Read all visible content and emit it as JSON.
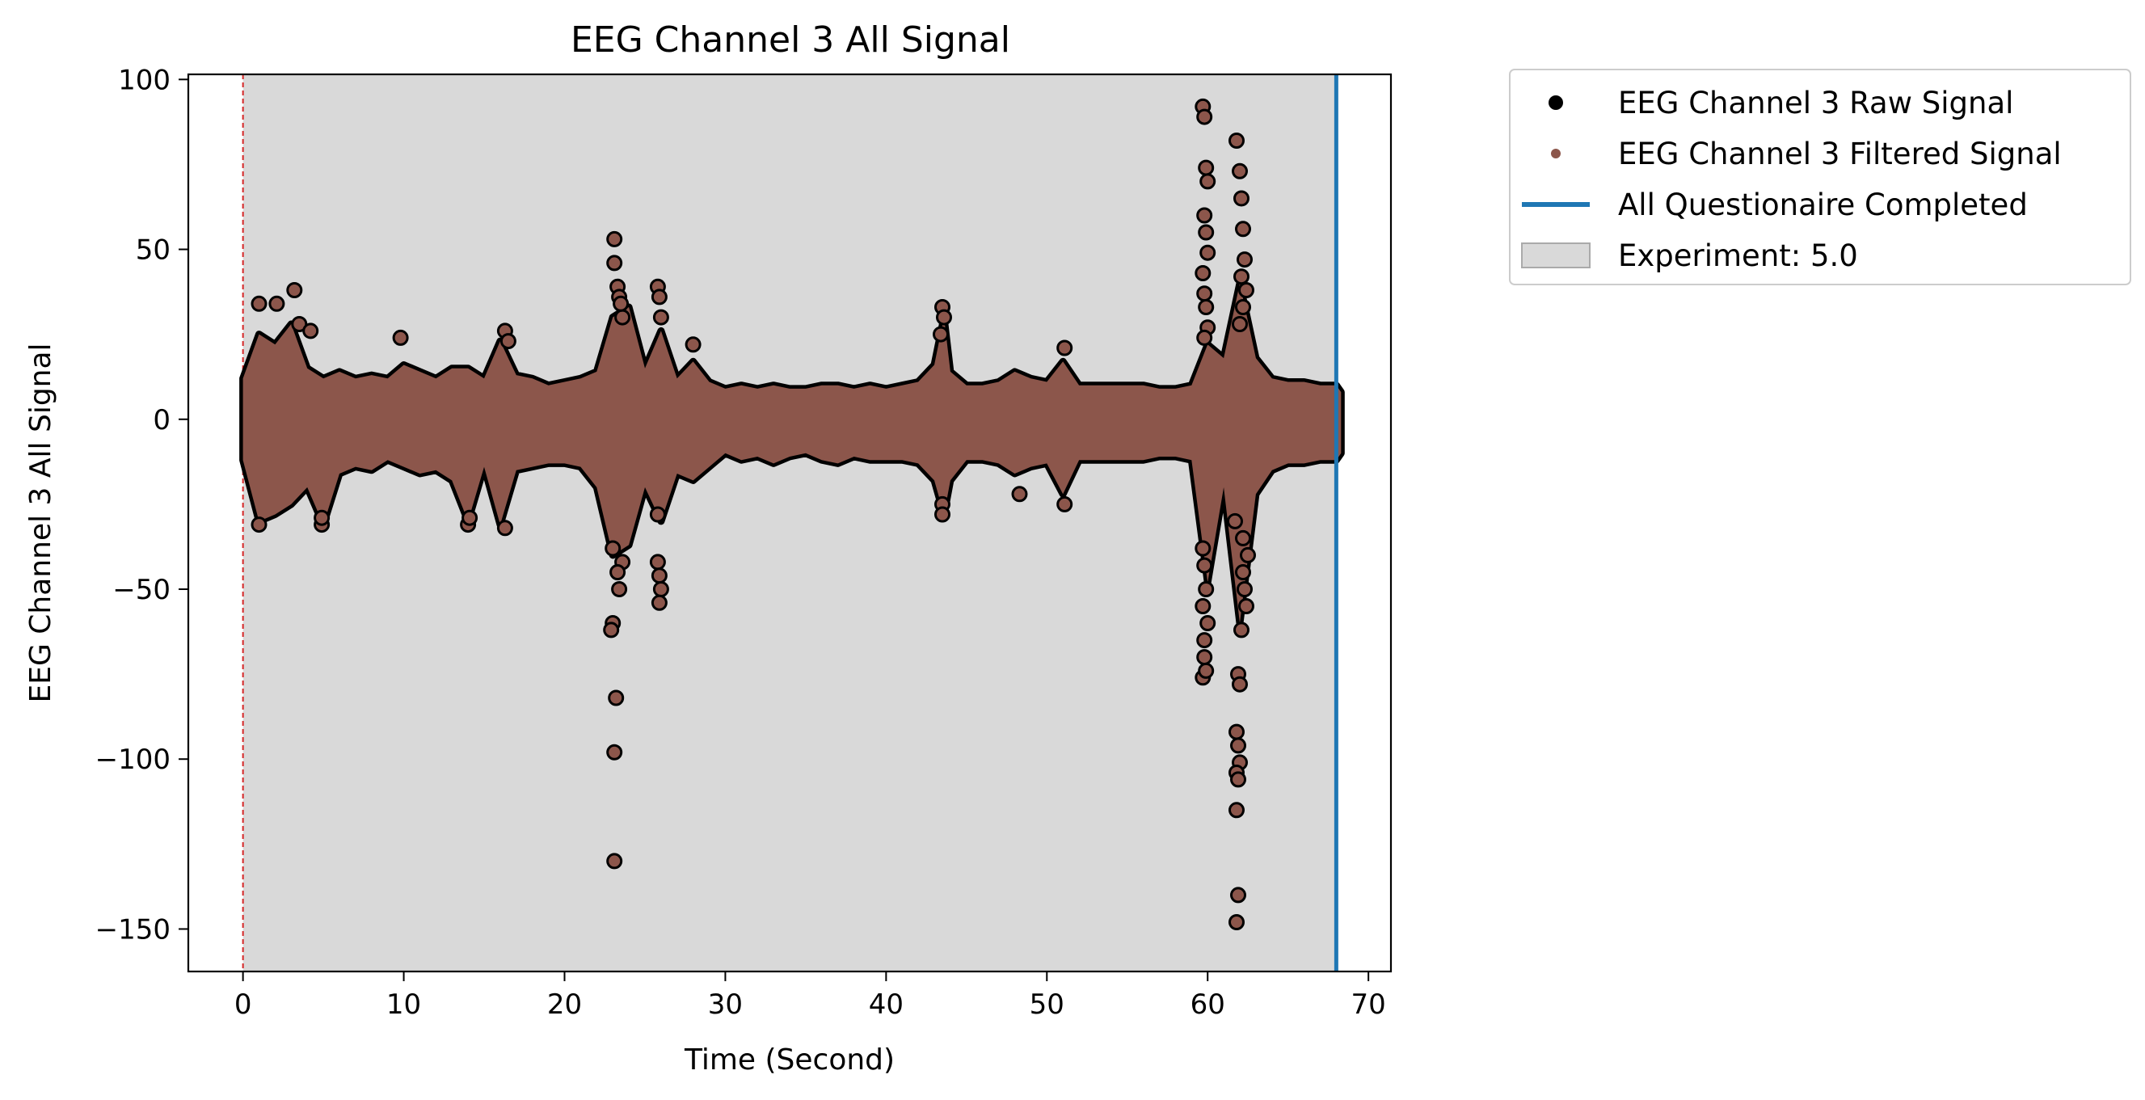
{
  "chart_data": {
    "type": "scatter",
    "title": "EEG Channel 3 All Signal",
    "xlabel": "Time (Second)",
    "ylabel": "EEG Channel 3 All Signal",
    "xlim": [
      -3.4,
      71.4
    ],
    "ylim": [
      -162.5,
      101.5
    ],
    "xticks": [
      0,
      10,
      20,
      30,
      40,
      50,
      60,
      70
    ],
    "yticks": [
      100,
      50,
      0,
      -50,
      -100,
      -150
    ],
    "grid": false,
    "legend_position": "outside-right",
    "colors": {
      "raw": "#000000",
      "filtered": "#8c564b",
      "questionnaire_line": "#1f77b4",
      "experiment_span": "#d9d9d9",
      "start_line": "#d62728"
    },
    "series": [
      {
        "name": "EEG Channel 3 Raw Signal",
        "marker": "dot",
        "color": "#000000"
      },
      {
        "name": "EEG Channel 3 Filtered Signal",
        "marker": "dot",
        "color": "#8c564b"
      }
    ],
    "annotations": {
      "start_line_x": 0,
      "questionnaire_line_x": 68.0,
      "experiment_span": [
        0,
        68.0
      ]
    },
    "legend": [
      {
        "label": "EEG Channel 3 Raw Signal",
        "kind": "dot",
        "color": "#000000"
      },
      {
        "label": "EEG Channel 3 Filtered Signal",
        "kind": "dot",
        "color": "#8c564b"
      },
      {
        "label": "All Questionaire Completed",
        "kind": "line",
        "color": "#1f77b4"
      },
      {
        "label": "Experiment: 5.0",
        "kind": "patch",
        "color": "#d9d9d9"
      }
    ],
    "envelope": [
      [
        0.0,
        12,
        -12
      ],
      [
        1.0,
        25,
        -30
      ],
      [
        2.0,
        22,
        -28
      ],
      [
        3.0,
        28,
        -25
      ],
      [
        4.0,
        15,
        -20
      ],
      [
        5.0,
        12,
        -31
      ],
      [
        6.0,
        14,
        -16
      ],
      [
        7.0,
        12,
        -14
      ],
      [
        8.0,
        13,
        -15
      ],
      [
        9.0,
        12,
        -12
      ],
      [
        10.0,
        16,
        -14
      ],
      [
        11.0,
        14,
        -16
      ],
      [
        12.0,
        12,
        -15
      ],
      [
        13.0,
        15,
        -18
      ],
      [
        14.0,
        15,
        -30
      ],
      [
        15.0,
        12,
        -14
      ],
      [
        16.0,
        23,
        -31
      ],
      [
        17.0,
        13,
        -15
      ],
      [
        18.0,
        12,
        -14
      ],
      [
        19.0,
        10,
        -13
      ],
      [
        20.0,
        11,
        -13
      ],
      [
        21.0,
        12,
        -14
      ],
      [
        22.0,
        14,
        -20
      ],
      [
        23.0,
        30,
        -40
      ],
      [
        24.0,
        33,
        -37
      ],
      [
        25.0,
        15,
        -20
      ],
      [
        26.0,
        26,
        -30
      ],
      [
        27.0,
        12,
        -16
      ],
      [
        28.0,
        17,
        -18
      ],
      [
        29.0,
        11,
        -14
      ],
      [
        30.0,
        9,
        -10
      ],
      [
        31.0,
        10,
        -12
      ],
      [
        32.0,
        9,
        -11
      ],
      [
        33.0,
        10,
        -13
      ],
      [
        34.0,
        9,
        -11
      ],
      [
        35.0,
        9,
        -10
      ],
      [
        36.0,
        10,
        -12
      ],
      [
        37.0,
        10,
        -13
      ],
      [
        38.0,
        9,
        -11
      ],
      [
        39.0,
        10,
        -12
      ],
      [
        40.0,
        9,
        -12
      ],
      [
        41.0,
        10,
        -12
      ],
      [
        42.0,
        11,
        -13
      ],
      [
        43.0,
        16,
        -18
      ],
      [
        43.6,
        30,
        -28
      ],
      [
        44.0,
        14,
        -18
      ],
      [
        45.0,
        10,
        -12
      ],
      [
        46.0,
        10,
        -12
      ],
      [
        47.0,
        11,
        -13
      ],
      [
        48.0,
        14,
        -16
      ],
      [
        49.0,
        12,
        -14
      ],
      [
        50.0,
        11,
        -13
      ],
      [
        51.0,
        17,
        -22
      ],
      [
        52.0,
        10,
        -12
      ],
      [
        53.0,
        10,
        -12
      ],
      [
        54.0,
        10,
        -12
      ],
      [
        55.0,
        10,
        -12
      ],
      [
        56.0,
        10,
        -12
      ],
      [
        57.0,
        9,
        -11
      ],
      [
        58.0,
        9,
        -11
      ],
      [
        59.0,
        10,
        -12
      ],
      [
        60.0,
        22,
        -48
      ],
      [
        61.0,
        18,
        -20
      ],
      [
        62.0,
        40,
        -60
      ],
      [
        63.0,
        18,
        -22
      ],
      [
        64.0,
        12,
        -15
      ],
      [
        65.0,
        11,
        -13
      ],
      [
        66.0,
        11,
        -13
      ],
      [
        67.0,
        10,
        -12
      ],
      [
        68.0,
        10,
        -12
      ],
      [
        68.3,
        8,
        -10
      ]
    ],
    "outliers": [
      [
        1.0,
        34
      ],
      [
        1.0,
        -31
      ],
      [
        2.1,
        34
      ],
      [
        3.2,
        38
      ],
      [
        3.5,
        28
      ],
      [
        4.2,
        26
      ],
      [
        4.9,
        -31
      ],
      [
        4.9,
        -29
      ],
      [
        9.8,
        24
      ],
      [
        14.0,
        -31
      ],
      [
        14.1,
        -29
      ],
      [
        16.3,
        26
      ],
      [
        16.5,
        23
      ],
      [
        16.3,
        -32
      ],
      [
        23.1,
        53
      ],
      [
        23.1,
        46
      ],
      [
        23.3,
        39
      ],
      [
        23.4,
        36
      ],
      [
        23.6,
        30
      ],
      [
        23.5,
        34
      ],
      [
        23.0,
        -60
      ],
      [
        22.9,
        -62
      ],
      [
        23.2,
        -82
      ],
      [
        23.1,
        -98
      ],
      [
        23.1,
        -130
      ],
      [
        23.4,
        -50
      ],
      [
        23.6,
        -42
      ],
      [
        23.3,
        -45
      ],
      [
        23.0,
        -38
      ],
      [
        25.8,
        39
      ],
      [
        25.9,
        36
      ],
      [
        26.0,
        30
      ],
      [
        25.8,
        -42
      ],
      [
        25.9,
        -46
      ],
      [
        26.0,
        -50
      ],
      [
        25.9,
        -54
      ],
      [
        25.8,
        -28
      ],
      [
        28.0,
        22
      ],
      [
        43.5,
        33
      ],
      [
        43.6,
        30
      ],
      [
        43.4,
        25
      ],
      [
        43.5,
        -25
      ],
      [
        43.5,
        -28
      ],
      [
        48.3,
        -22
      ],
      [
        51.1,
        21
      ],
      [
        51.1,
        -25
      ],
      [
        59.7,
        92
      ],
      [
        59.8,
        89
      ],
      [
        59.9,
        74
      ],
      [
        60.0,
        70
      ],
      [
        59.8,
        60
      ],
      [
        59.9,
        55
      ],
      [
        60.0,
        49
      ],
      [
        59.7,
        43
      ],
      [
        59.8,
        37
      ],
      [
        59.9,
        33
      ],
      [
        60.0,
        27
      ],
      [
        59.8,
        24
      ],
      [
        59.7,
        -55
      ],
      [
        59.8,
        -65
      ],
      [
        59.8,
        -70
      ],
      [
        59.7,
        -76
      ],
      [
        59.9,
        -74
      ],
      [
        60.0,
        -60
      ],
      [
        59.8,
        -43
      ],
      [
        59.9,
        -50
      ],
      [
        59.7,
        -38
      ],
      [
        61.8,
        82
      ],
      [
        62.0,
        73
      ],
      [
        62.1,
        65
      ],
      [
        62.2,
        56
      ],
      [
        62.3,
        47
      ],
      [
        62.1,
        42
      ],
      [
        62.4,
        38
      ],
      [
        62.2,
        33
      ],
      [
        62.0,
        28
      ],
      [
        61.9,
        -75
      ],
      [
        62.0,
        -78
      ],
      [
        61.8,
        -92
      ],
      [
        61.9,
        -96
      ],
      [
        62.0,
        -101
      ],
      [
        61.8,
        -104
      ],
      [
        61.9,
        -106
      ],
      [
        61.8,
        -115
      ],
      [
        61.9,
        -140
      ],
      [
        61.8,
        -148
      ],
      [
        62.3,
        -50
      ],
      [
        62.4,
        -55
      ],
      [
        62.2,
        -45
      ],
      [
        62.5,
        -40
      ],
      [
        62.1,
        -62
      ],
      [
        62.2,
        -35
      ],
      [
        61.7,
        -30
      ]
    ]
  }
}
